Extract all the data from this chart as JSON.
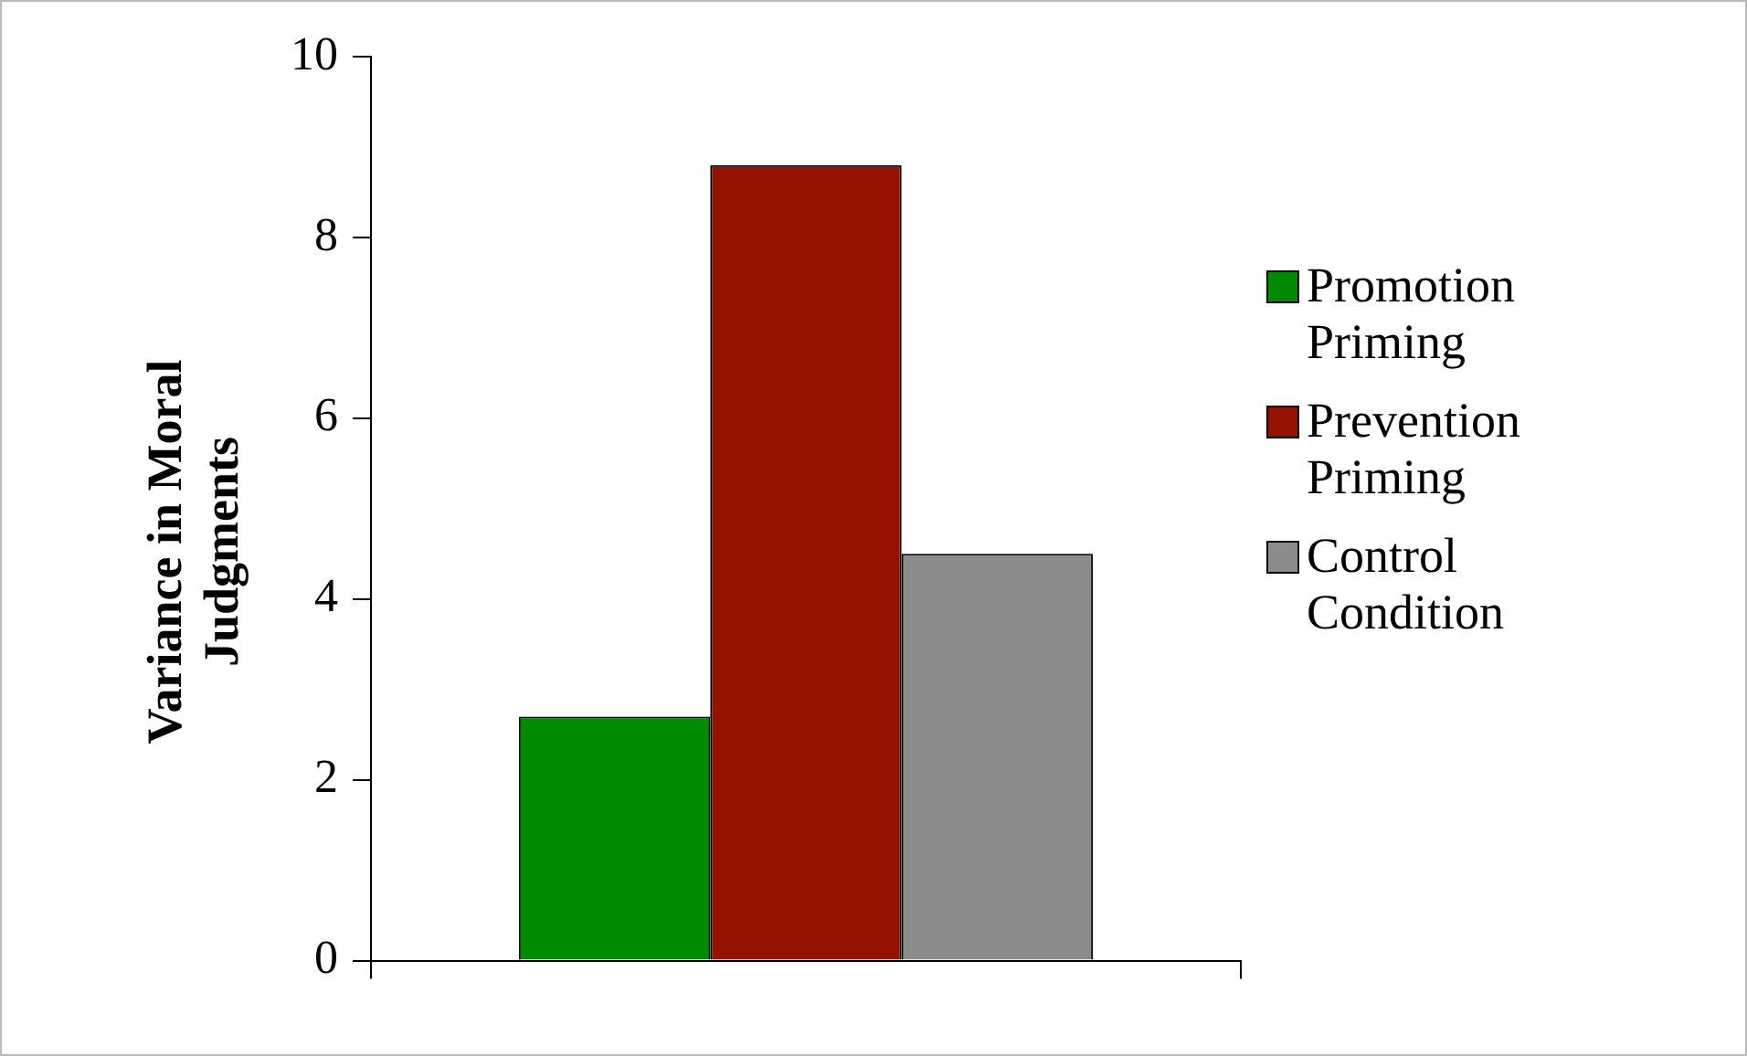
{
  "chart_data": {
    "type": "bar",
    "ylabel": "Variance in Moral Judgments",
    "categories": [
      null
    ],
    "series": [
      {
        "name": "Promotion Priming",
        "color": "#008a00",
        "values": [
          2.7
        ]
      },
      {
        "name": "Prevention Priming",
        "color": "#951200",
        "values": [
          8.8
        ]
      },
      {
        "name": "Control Condition",
        "color": "#8c8c8c",
        "values": [
          4.5
        ]
      }
    ],
    "ylim": [
      0,
      10
    ],
    "yticks": [
      0,
      2,
      4,
      6,
      8,
      10
    ],
    "grid": false,
    "legend": "right"
  }
}
